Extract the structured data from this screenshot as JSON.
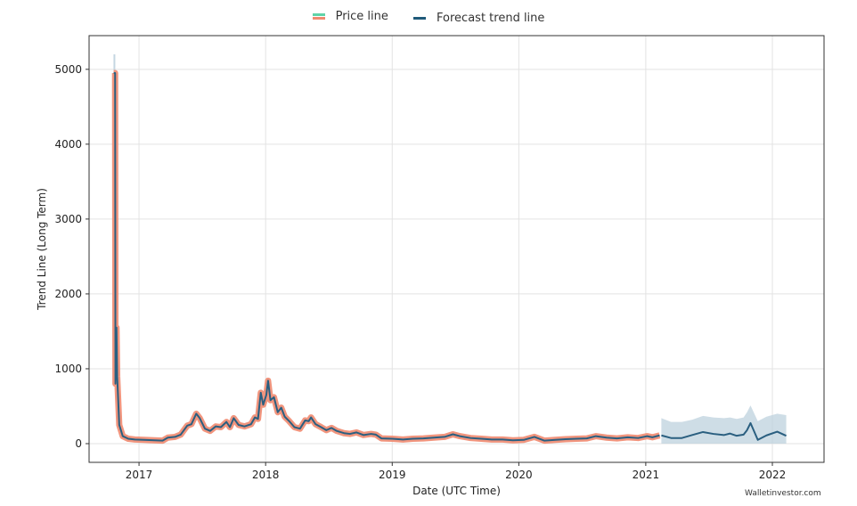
{
  "chart_data": {
    "type": "line",
    "title": "",
    "xlabel": "Date (UTC Time)",
    "ylabel": "Trend Line (Long Term)",
    "xlim": [
      "2016-08-10",
      "2022-05-30"
    ],
    "ylim": [
      -250,
      5450
    ],
    "xticks": [
      "2017",
      "2018",
      "2019",
      "2020",
      "2021",
      "2022"
    ],
    "yticks": [
      0,
      1000,
      2000,
      3000,
      4000,
      5000
    ],
    "grid": true,
    "legend": {
      "placement": "top-center",
      "entries": [
        {
          "name": "Price line",
          "color": "#f08a70",
          "color2": "#5fd3a8"
        },
        {
          "name": "Forecast trend line",
          "color": "#1f5a7a"
        }
      ]
    },
    "colors": {
      "price": "#f08a70",
      "trend": "#2a5f80",
      "band": "#b9cfdc"
    },
    "series": [
      {
        "name": "Price line",
        "points": [
          [
            "2016-10-20",
            4950
          ],
          [
            "2016-10-24",
            4950
          ],
          [
            "2016-10-25",
            800
          ],
          [
            "2016-10-28",
            1550
          ],
          [
            "2016-10-30",
            900
          ],
          [
            "2016-11-05",
            250
          ],
          [
            "2016-11-15",
            100
          ],
          [
            "2016-12-01",
            65
          ],
          [
            "2016-12-20",
            55
          ],
          [
            "2017-01-15",
            50
          ],
          [
            "2017-02-15",
            45
          ],
          [
            "2017-03-10",
            40
          ],
          [
            "2017-03-25",
            80
          ],
          [
            "2017-04-15",
            90
          ],
          [
            "2017-05-01",
            120
          ],
          [
            "2017-05-20",
            240
          ],
          [
            "2017-06-01",
            260
          ],
          [
            "2017-06-15",
            400
          ],
          [
            "2017-06-25",
            340
          ],
          [
            "2017-07-10",
            200
          ],
          [
            "2017-07-25",
            170
          ],
          [
            "2017-08-10",
            230
          ],
          [
            "2017-08-25",
            220
          ],
          [
            "2017-09-10",
            290
          ],
          [
            "2017-09-20",
            220
          ],
          [
            "2017-10-01",
            340
          ],
          [
            "2017-10-15",
            250
          ],
          [
            "2017-11-01",
            230
          ],
          [
            "2017-11-20",
            260
          ],
          [
            "2017-12-01",
            350
          ],
          [
            "2017-12-10",
            330
          ],
          [
            "2017-12-18",
            680
          ],
          [
            "2017-12-25",
            520
          ],
          [
            "2018-01-03",
            650
          ],
          [
            "2018-01-08",
            840
          ],
          [
            "2018-01-15",
            580
          ],
          [
            "2018-01-25",
            620
          ],
          [
            "2018-02-05",
            420
          ],
          [
            "2018-02-15",
            480
          ],
          [
            "2018-02-25",
            360
          ],
          [
            "2018-03-10",
            300
          ],
          [
            "2018-03-25",
            220
          ],
          [
            "2018-04-10",
            200
          ],
          [
            "2018-04-25",
            310
          ],
          [
            "2018-05-05",
            300
          ],
          [
            "2018-05-12",
            350
          ],
          [
            "2018-05-25",
            260
          ],
          [
            "2018-06-10",
            220
          ],
          [
            "2018-06-25",
            180
          ],
          [
            "2018-07-10",
            210
          ],
          [
            "2018-07-25",
            170
          ],
          [
            "2018-08-15",
            140
          ],
          [
            "2018-09-01",
            130
          ],
          [
            "2018-09-20",
            150
          ],
          [
            "2018-10-10",
            115
          ],
          [
            "2018-11-01",
            130
          ],
          [
            "2018-11-15",
            120
          ],
          [
            "2018-12-01",
            70
          ],
          [
            "2019-01-01",
            65
          ],
          [
            "2019-02-01",
            55
          ],
          [
            "2019-03-01",
            65
          ],
          [
            "2019-04-01",
            70
          ],
          [
            "2019-05-01",
            80
          ],
          [
            "2019-06-01",
            90
          ],
          [
            "2019-06-25",
            125
          ],
          [
            "2019-07-15",
            100
          ],
          [
            "2019-08-15",
            75
          ],
          [
            "2019-09-15",
            65
          ],
          [
            "2019-10-15",
            55
          ],
          [
            "2019-11-15",
            55
          ],
          [
            "2019-12-15",
            45
          ],
          [
            "2020-01-15",
            50
          ],
          [
            "2020-02-15",
            90
          ],
          [
            "2020-03-15",
            40
          ],
          [
            "2020-04-15",
            50
          ],
          [
            "2020-05-15",
            60
          ],
          [
            "2020-06-15",
            65
          ],
          [
            "2020-07-15",
            70
          ],
          [
            "2020-08-10",
            100
          ],
          [
            "2020-09-10",
            80
          ],
          [
            "2020-10-10",
            70
          ],
          [
            "2020-11-10",
            85
          ],
          [
            "2020-12-10",
            75
          ],
          [
            "2021-01-05",
            100
          ],
          [
            "2021-01-20",
            85
          ],
          [
            "2021-02-10",
            110
          ]
        ]
      },
      {
        "name": "Forecast trend line",
        "points": [
          [
            "2021-02-15",
            110,
            0,
            340
          ],
          [
            "2021-03-15",
            75,
            0,
            290
          ],
          [
            "2021-04-15",
            75,
            0,
            290
          ],
          [
            "2021-05-15",
            115,
            0,
            320
          ],
          [
            "2021-06-15",
            155,
            0,
            370
          ],
          [
            "2021-07-15",
            130,
            0,
            350
          ],
          [
            "2021-08-15",
            115,
            0,
            340
          ],
          [
            "2021-09-01",
            135,
            0,
            350
          ],
          [
            "2021-09-20",
            105,
            0,
            330
          ],
          [
            "2021-10-10",
            120,
            0,
            350
          ],
          [
            "2021-10-20",
            180,
            0,
            420
          ],
          [
            "2021-10-30",
            275,
            0,
            510
          ],
          [
            "2021-11-20",
            50,
            0,
            300
          ],
          [
            "2021-12-15",
            110,
            0,
            360
          ],
          [
            "2022-01-15",
            160,
            0,
            400
          ],
          [
            "2022-02-10",
            105,
            0,
            380
          ]
        ]
      }
    ]
  },
  "watermark": "Walletinvestor.com"
}
